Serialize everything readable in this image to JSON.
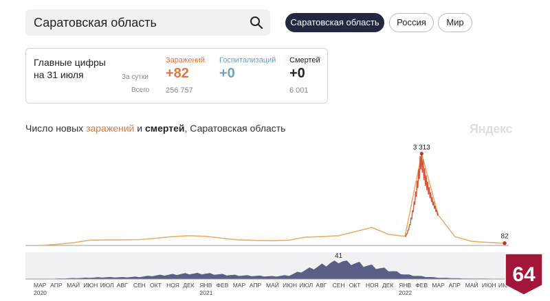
{
  "search": {
    "value": "Саратовская область"
  },
  "regions": [
    "Саратовская область",
    "Россия",
    "Мир"
  ],
  "stats": {
    "title_line1": "Главные цифры",
    "title_line2": "на 31 июля",
    "row_daily": "За сутки",
    "row_total": "Всего",
    "infections": {
      "label": "Заражений",
      "daily": "+82",
      "total": "256 757",
      "color": "#e8743b"
    },
    "hospital": {
      "label": "Госпитализаций",
      "daily": "+0",
      "color": "#6f9fc4"
    },
    "deaths": {
      "label": "Смертей",
      "daily": "+0",
      "total": "6 001",
      "color": "#222222"
    }
  },
  "chart_title": {
    "pre": "Число новых ",
    "infections": "заражений",
    "mid": " и ",
    "deaths": "смертей",
    "post": ", Саратовская область"
  },
  "watermark": "Яндекс",
  "badge": "64",
  "chart_data": {
    "type": "line",
    "x": [
      "2020-03",
      "2020-04",
      "2020-05",
      "2020-06",
      "2020-07",
      "2020-08",
      "2020-09",
      "2020-10",
      "2020-11",
      "2020-12",
      "2021-01",
      "2021-02",
      "2021-03",
      "2021-04",
      "2021-05",
      "2021-06",
      "2021-07",
      "2021-08",
      "2021-09",
      "2021-10",
      "2021-11",
      "2021-12",
      "2022-01",
      "2022-02",
      "2022-03",
      "2022-04",
      "2022-05",
      "2022-06",
      "2022-07"
    ],
    "series": [
      {
        "values": [
          0,
          40,
          100,
          190,
          200,
          200,
          210,
          260,
          320,
          350,
          330,
          260,
          200,
          180,
          170,
          190,
          300,
          320,
          350,
          500,
          650,
          400,
          330,
          3313,
          1100,
          320,
          150,
          110,
          82
        ],
        "color": "#e8b06a"
      },
      {
        "values": [
          0,
          1,
          2,
          3,
          4,
          4,
          5,
          8,
          10,
          12,
          12,
          10,
          8,
          7,
          6,
          8,
          20,
          30,
          41,
          35,
          28,
          20,
          10,
          6,
          3,
          2,
          1,
          1,
          0
        ],
        "color": "#5b5f86"
      }
    ],
    "annotations": {
      "infections_peak": "3 313",
      "infections_last": "82",
      "deaths_peak": "41"
    },
    "month_labels": [
      "МАР",
      "АПР",
      "МАЙ",
      "ИЮН",
      "ИЮЛ",
      "АВГ",
      "СЕН",
      "ОКТ",
      "НОЯ",
      "ДЕК",
      "ЯНВ",
      "ФЕВ",
      "МАР",
      "АПР",
      "МАЙ",
      "ИЮН",
      "ИЮЛ",
      "АВГ",
      "СЕН",
      "ОКТ",
      "НОЯ",
      "ДЕК",
      "ЯНВ",
      "ФЕВ",
      "МАР",
      "АПР",
      "МАЙ",
      "ИЮН",
      "ИЮЛ"
    ],
    "year_labels": [
      "2020",
      "2021",
      "2022"
    ]
  }
}
